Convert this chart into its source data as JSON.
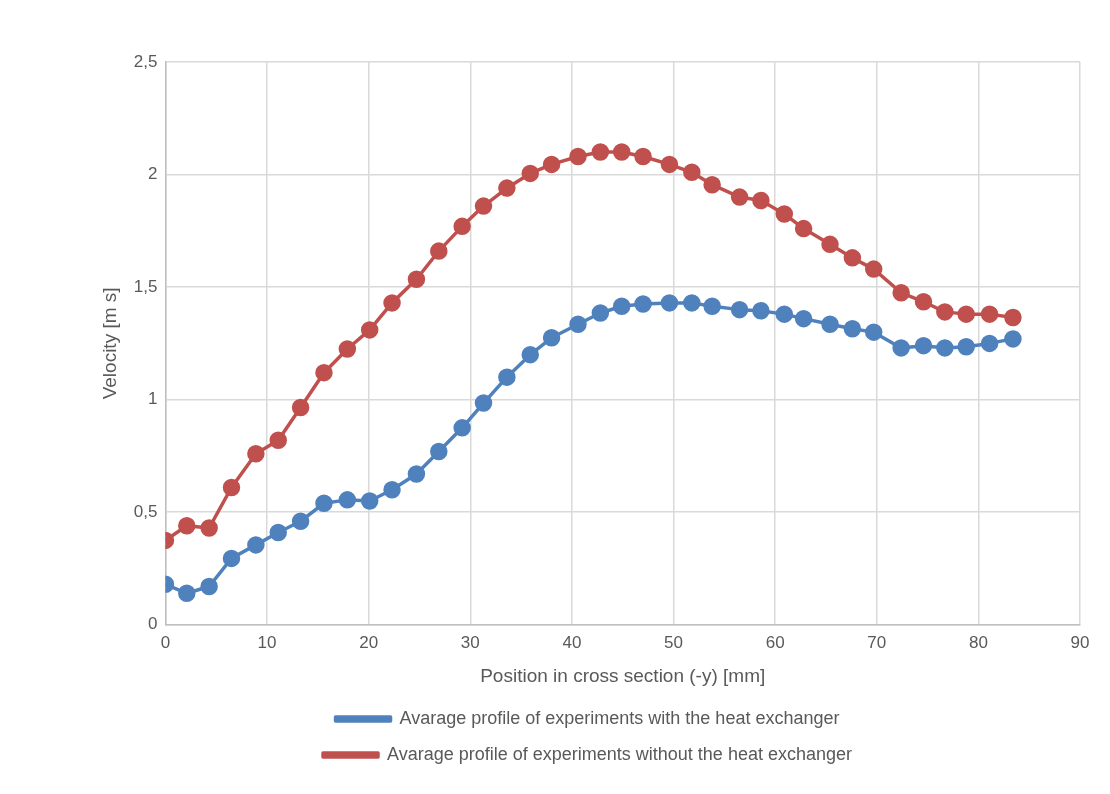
{
  "chart_data": {
    "type": "line",
    "xlabel": "Position in cross section (-y) [mm]",
    "ylabel": "Velocity [m s]",
    "xlim": [
      0,
      90
    ],
    "xticks": [
      0,
      10,
      20,
      30,
      40,
      50,
      60,
      70,
      80,
      90
    ],
    "ylim": [
      0,
      2.5
    ],
    "yticks": [
      0,
      {
        "value": 0.5,
        "label": "0,5"
      },
      1,
      {
        "value": 1.5,
        "label": "1,5"
      },
      2,
      {
        "value": 2.5,
        "label": "2,5"
      }
    ],
    "x": [
      0,
      2.1,
      4.3,
      6.5,
      8.9,
      11.1,
      13.3,
      15.6,
      17.9,
      20.1,
      22.3,
      24.7,
      26.9,
      29.2,
      31.3,
      33.6,
      35.9,
      38.0,
      40.6,
      42.8,
      44.9,
      47.0,
      49.6,
      51.8,
      53.8,
      56.5,
      58.6,
      60.9,
      62.8,
      65.4,
      67.6,
      69.7,
      72.4,
      74.6,
      76.7,
      78.8,
      81.1,
      83.4
    ],
    "series": [
      {
        "name": "Avarage profile of experiments with the heat exchanger",
        "color": "#4f81bd",
        "values": [
          0.18,
          0.14,
          0.17,
          0.295,
          0.355,
          0.41,
          0.46,
          0.54,
          0.555,
          0.55,
          0.6,
          0.67,
          0.77,
          0.875,
          0.985,
          1.1,
          1.2,
          1.275,
          1.335,
          1.385,
          1.415,
          1.425,
          1.43,
          1.43,
          1.415,
          1.4,
          1.395,
          1.38,
          1.36,
          1.335,
          1.315,
          1.3,
          1.23,
          1.24,
          1.23,
          1.235,
          1.25,
          1.27
        ]
      },
      {
        "name": "Avarage profile of experiments without the heat exchanger",
        "color": "#c0504d",
        "values": [
          0.375,
          0.44,
          0.43,
          0.61,
          0.76,
          0.82,
          0.965,
          1.12,
          1.225,
          1.31,
          1.43,
          1.535,
          1.66,
          1.77,
          1.86,
          1.94,
          2.005,
          2.045,
          2.08,
          2.1,
          2.1,
          2.08,
          2.045,
          2.01,
          1.955,
          1.9,
          1.885,
          1.825,
          1.76,
          1.69,
          1.63,
          1.58,
          1.475,
          1.435,
          1.39,
          1.38,
          1.38,
          1.365
        ]
      }
    ],
    "grid": true,
    "legend": "bottom",
    "marker": "circle",
    "line_style": "solid"
  }
}
